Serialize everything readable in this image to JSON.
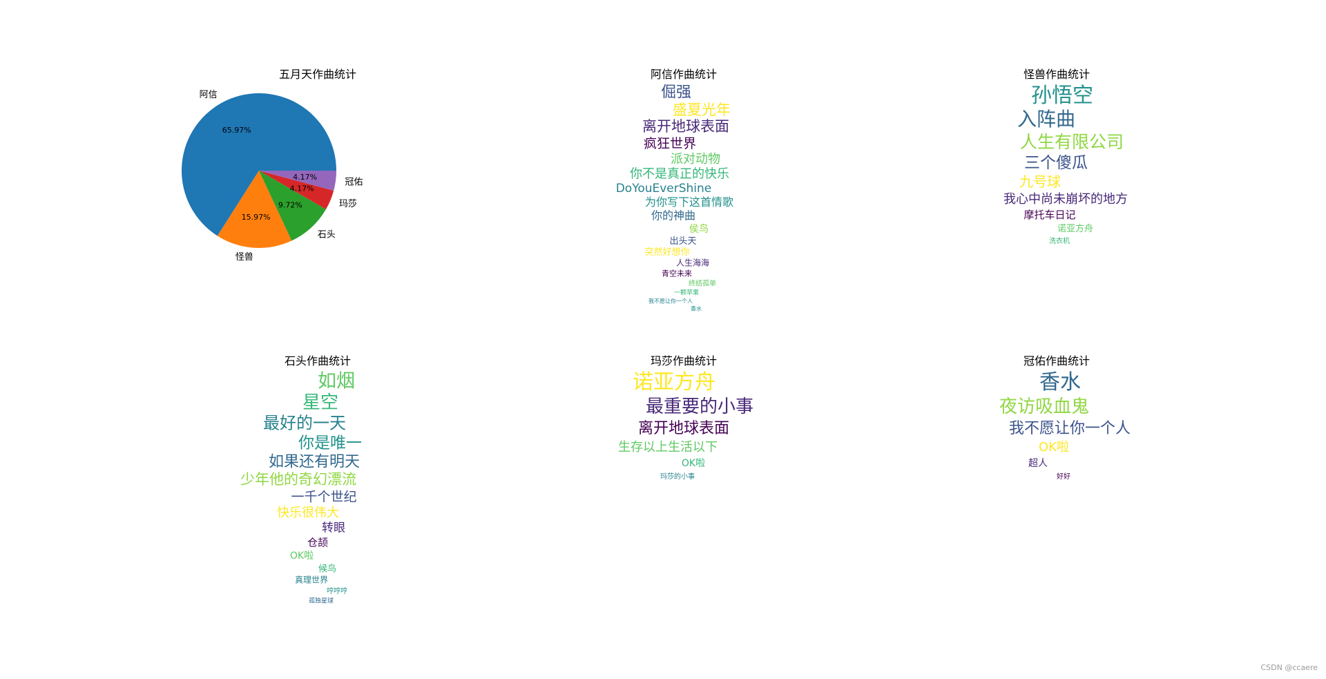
{
  "chart_data": [
    {
      "type": "pie",
      "title": "五月天作曲统计",
      "series": [
        {
          "label": "阿信",
          "value": 65.97,
          "pct": "65.97%",
          "color": "#1f77b4"
        },
        {
          "label": "怪兽",
          "value": 15.97,
          "pct": "15.97%",
          "color": "#ff7f0e"
        },
        {
          "label": "石头",
          "value": 9.72,
          "pct": "9.72%",
          "color": "#2ca02c"
        },
        {
          "label": "玛莎",
          "value": 4.17,
          "pct": "4.17%",
          "color": "#d62728"
        },
        {
          "label": "冠佑",
          "value": 4.17,
          "pct": "4.17%",
          "color": "#9467bd"
        }
      ],
      "legend": "none"
    },
    {
      "type": "wordcloud",
      "title": "阿信作曲统计",
      "words": [
        "倔强",
        "盛夏光年",
        "离开地球表面",
        "疯狂世界",
        "派对动物",
        "你不是真正的快乐",
        "DoYouEverShine",
        "为你写下这首情歌",
        "你的神曲",
        "侯鸟",
        "出头天",
        "突然好想你",
        "人生海海",
        "青空未来",
        "终结孤单",
        "一颗苹果",
        "我不愿让你一个人",
        "香水"
      ]
    },
    {
      "type": "wordcloud",
      "title": "怪兽作曲统计",
      "words": [
        "孙悟空",
        "入阵曲",
        "人生有限公司",
        "三个傻瓜",
        "九号球",
        "我心中尚未崩坏的地方",
        "摩托车日记",
        "诺亚方舟",
        "洗衣机"
      ]
    },
    {
      "type": "wordcloud",
      "title": "石头作曲统计",
      "words": [
        "如烟",
        "星空",
        "最好的一天",
        "你是唯一",
        "如果还有明天",
        "少年他的奇幻漂流",
        "一千个世纪",
        "快乐很伟大",
        "转眼",
        "仓颉",
        "OK啦",
        "候鸟",
        "真理世界",
        "哼哼哼",
        "孤独星球"
      ]
    },
    {
      "type": "wordcloud",
      "title": "玛莎作曲统计",
      "words": [
        "诺亚方舟",
        "最重要的小事",
        "离开地球表面",
        "生存以上生活以下",
        "OK啦",
        "玛莎的小事"
      ]
    },
    {
      "type": "wordcloud",
      "title": "冠佑作曲统计",
      "words": [
        "香水",
        "夜访吸血鬼",
        "我不愿让你一个人",
        "OK啦",
        "超人",
        "好好"
      ]
    }
  ],
  "watermark": "CSDN @ccaere"
}
